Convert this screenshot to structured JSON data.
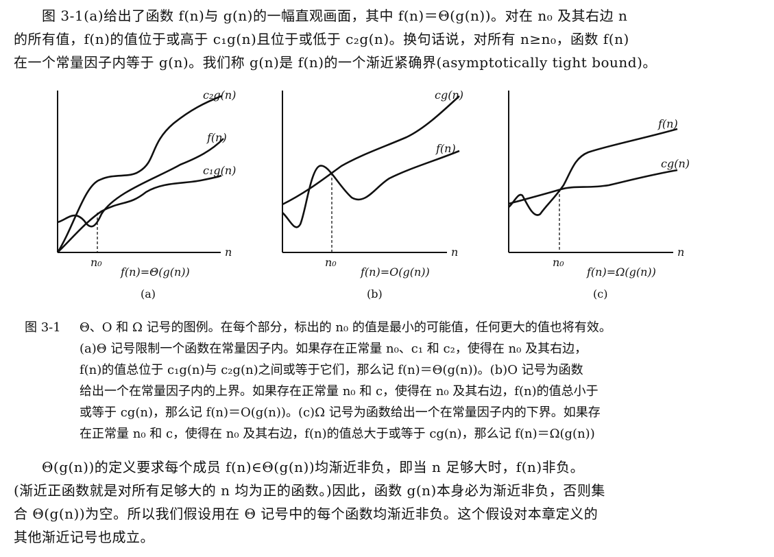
{
  "paragraph_top": [
    "　　图 3-1(a)给出了函数 f(n)与 g(n)的一幅直观画面，其中 f(n)＝Θ(g(n))。对在 n₀ 及其右边 n",
    "的所有值，f(n)的值位于或高于 c₁g(n)且位于或低于 c₂g(n)。换句话说，对所有 n≥n₀，函数 f(n)",
    "在一个常量因子内等于 g(n)。我们称 g(n)是 f(n)的一个渐近紧确界(asymptotically tight bound)。"
  ],
  "figures": [
    {
      "id": "a",
      "curve_labels": [
        "c₂g(n)",
        "f(n)",
        "c₁g(n)"
      ],
      "x_axis_label": "n",
      "n0_label": "n₀",
      "formula": "f(n)=Θ(g(n))",
      "sub_label": "(a)"
    },
    {
      "id": "b",
      "curve_labels": [
        "cg(n)",
        "f(n)"
      ],
      "x_axis_label": "n",
      "n0_label": "n₀",
      "formula": "f(n)=O(g(n))",
      "sub_label": "(b)"
    },
    {
      "id": "c",
      "curve_labels": [
        "f(n)",
        "cg(n)"
      ],
      "x_axis_label": "n",
      "n0_label": "n₀",
      "formula": "f(n)=Ω(g(n))",
      "sub_label": "(c)"
    }
  ],
  "caption": {
    "label": "图 3-1",
    "lines": [
      "Θ、O 和 Ω 记号的图例。在每个部分，标出的 n₀ 的值是最小的可能值，任何更大的值也将有效。",
      "(a)Θ 记号限制一个函数在常量因子内。如果存在正常量 n₀、c₁ 和 c₂，使得在 n₀ 及其右边，",
      "f(n)的值总位于 c₁g(n)与 c₂g(n)之间或等于它们，那么记 f(n)＝Θ(g(n))。(b)O 记号为函数",
      "给出一个在常量因子内的上界。如果存在正常量 n₀ 和 c，使得在 n₀ 及其右边，f(n)的值总小于",
      "或等于 cg(n)，那么记 f(n)＝O(g(n))。(c)Ω 记号为函数给出一个在常量因子内的下界。如果存",
      "在正常量 n₀ 和 c，使得在 n₀ 及其右边，f(n)的值总大于或等于 cg(n)，那么记 f(n)＝Ω(g(n))"
    ]
  },
  "paragraph_bottom": [
    "　　Θ(g(n))的定义要求每个成员 f(n)∈Θ(g(n))均渐近非负，即当 n 足够大时，f(n)非负。",
    "(渐近正函数就是对所有足够大的 n 均为正的函数。)因此，函数 g(n)本身必为渐近非负，否则集",
    "合 Θ(g(n))为空。所以我们假设用在 Θ 记号中的每个函数均渐近非负。这个假设对本章定义的",
    "其他渐近记号也成立。"
  ]
}
